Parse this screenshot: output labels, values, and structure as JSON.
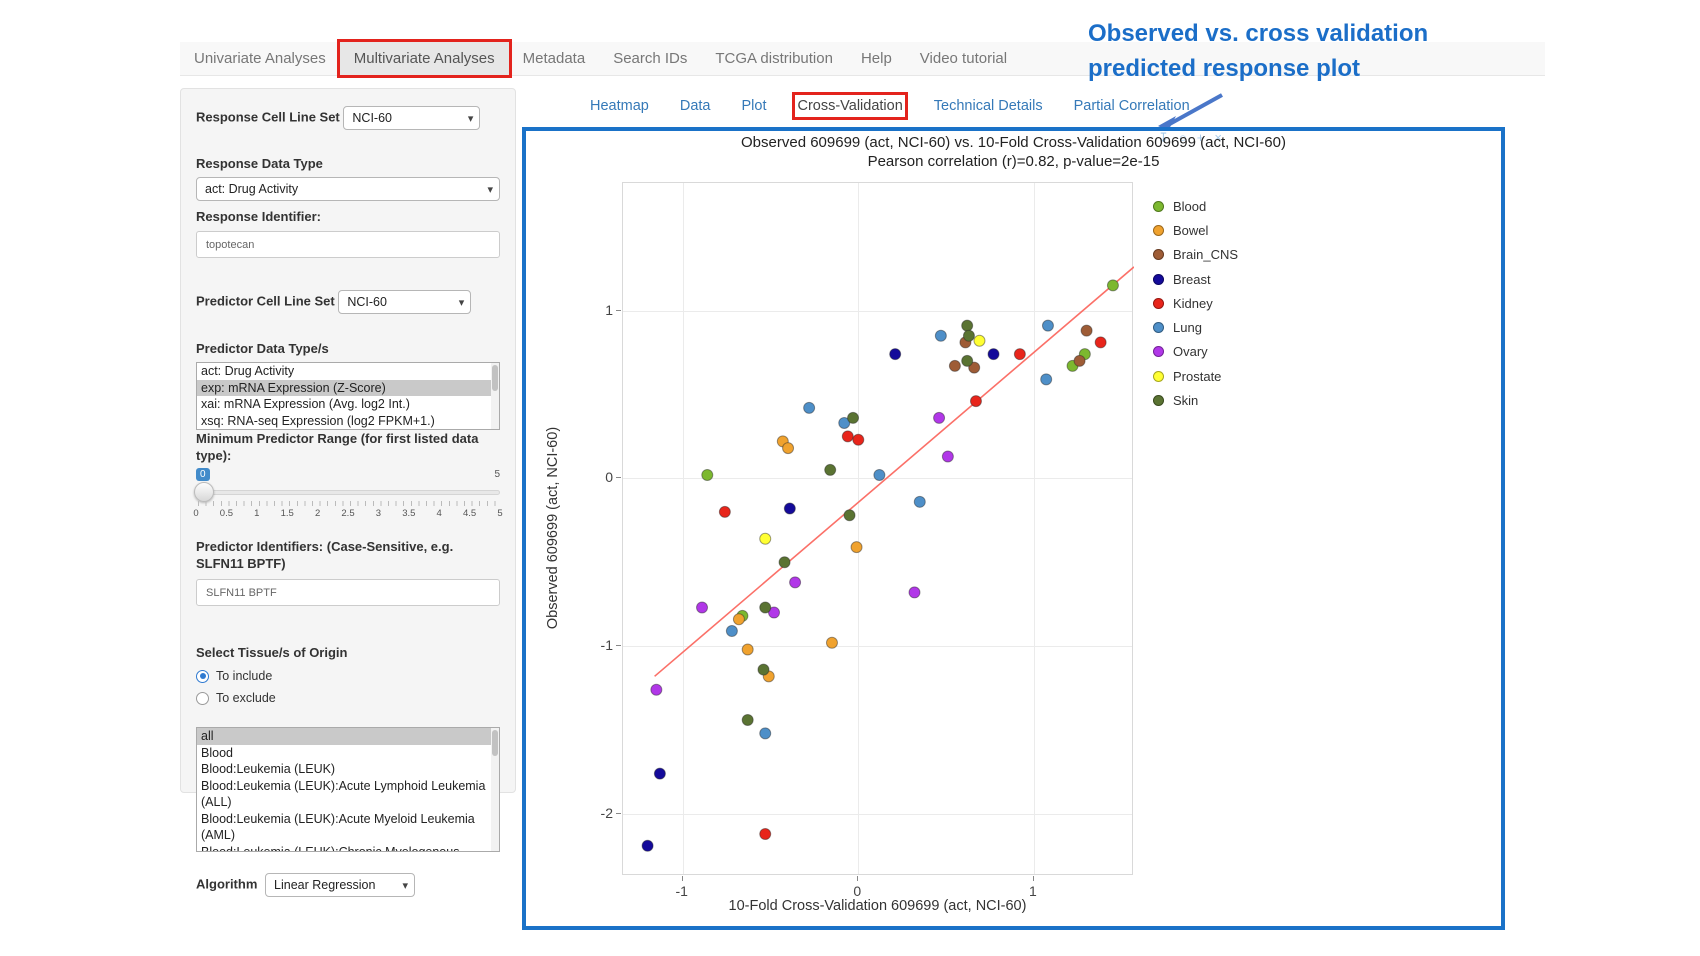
{
  "nav": {
    "items": [
      {
        "label": "Univariate Analyses",
        "active": false,
        "boxed": false
      },
      {
        "label": "Multivariate Analyses",
        "active": true,
        "boxed": true
      },
      {
        "label": "Metadata",
        "active": false,
        "boxed": false
      },
      {
        "label": "Search IDs",
        "active": false,
        "boxed": false
      },
      {
        "label": "TCGA distribution",
        "active": false,
        "boxed": false
      },
      {
        "label": "Help",
        "active": false,
        "boxed": false
      },
      {
        "label": "Video tutorial",
        "active": false,
        "boxed": false
      }
    ]
  },
  "annotation": {
    "line1": "Observed vs. cross validation",
    "line2": "predicted response plot"
  },
  "sidebar": {
    "response_cell_line_set": {
      "label": "Response Cell Line Set",
      "value": "NCI-60"
    },
    "response_data_type": {
      "label": "Response Data Type",
      "value": "act: Drug Activity"
    },
    "response_identifier": {
      "label": "Response Identifier:",
      "value": "topotecan"
    },
    "predictor_cell_line_set": {
      "label": "Predictor Cell Line Set",
      "value": "NCI-60"
    },
    "predictor_data_types": {
      "label": "Predictor Data Type/s",
      "options": [
        {
          "label": "act: Drug Activity",
          "selected": false
        },
        {
          "label": "exp: mRNA Expression (Z-Score)",
          "selected": true
        },
        {
          "label": "xai: mRNA Expression (Avg. log2 Int.)",
          "selected": false
        },
        {
          "label": "xsq: RNA-seq Expression (log2 FPKM+1.)",
          "selected": false
        }
      ]
    },
    "min_predictor_range": {
      "label": "Minimum Predictor Range (for first listed data type):",
      "value": "0",
      "max_label": "5",
      "grid": [
        "0",
        "0.5",
        "1",
        "1.5",
        "2",
        "2.5",
        "3",
        "3.5",
        "4",
        "4.5",
        "5"
      ]
    },
    "predictor_identifiers": {
      "label": "Predictor Identifiers: (Case-Sensitive, e.g. SLFN11 BPTF)",
      "value": "SLFN11 BPTF"
    },
    "tissue_origin": {
      "label": "Select Tissue/s of Origin",
      "radios": [
        {
          "label": "To include",
          "checked": true
        },
        {
          "label": "To exclude",
          "checked": false
        }
      ],
      "options": [
        {
          "label": "all",
          "selected": true
        },
        {
          "label": "Blood",
          "selected": false
        },
        {
          "label": "Blood:Leukemia (LEUK)",
          "selected": false
        },
        {
          "label": "Blood:Leukemia (LEUK):Acute Lymphoid Leukemia (ALL)",
          "selected": false
        },
        {
          "label": "Blood:Leukemia (LEUK):Acute Myeloid Leukemia (AML)",
          "selected": false
        },
        {
          "label": "Blood:Leukemia (LEUK):Chronic Myelogenous Leukemia (CML)",
          "selected": false
        }
      ]
    },
    "algorithm": {
      "label": "Algorithm",
      "value": "Linear Regression"
    }
  },
  "tabs": {
    "items": [
      {
        "label": "Heatmap",
        "active": false,
        "boxed": false
      },
      {
        "label": "Data",
        "active": false,
        "boxed": false
      },
      {
        "label": "Plot",
        "active": false,
        "boxed": false
      },
      {
        "label": "Cross-Validation",
        "active": true,
        "boxed": true
      },
      {
        "label": "Technical Details",
        "active": false,
        "boxed": false
      },
      {
        "label": "Partial Correlation",
        "active": false,
        "boxed": false
      }
    ]
  },
  "modebar": {
    "icons": [
      "download-icon",
      "zoom-icon",
      "pan-icon",
      "close-icon"
    ],
    "glyphs": [
      "↧",
      "○",
      "+",
      "×"
    ]
  },
  "colors": {
    "accent_blue": "#1b6ec8",
    "box_red": "#e3231d",
    "link_blue": "#3579b8",
    "trend_line": "#fb7068"
  },
  "chart_data": {
    "type": "scatter",
    "title": "Observed 609699 (act, NCI-60) vs. 10-Fold Cross-Validation 609699 (act, NCI-60)",
    "subtitle": "Pearson correlation (r)=0.82, p-value=2e-15",
    "xlabel": "10-Fold Cross-Validation 609699 (act, NCI-60)",
    "ylabel": "Observed 609699 (act, NCI-60)",
    "xlim": [
      -1.34,
      1.57
    ],
    "ylim": [
      -2.37,
      1.76
    ],
    "xticks": [
      -1,
      0,
      1
    ],
    "yticks": [
      1,
      0,
      -1,
      -2
    ],
    "grid": true,
    "legend_position": "right",
    "trend_line": {
      "x1": -1.16,
      "y1": -1.18,
      "x2": 1.57,
      "y2": 1.26
    },
    "groups": [
      {
        "name": "Blood",
        "color": "#7cb82f",
        "points": [
          [
            -0.86,
            0.02
          ],
          [
            -0.66,
            -0.82
          ],
          [
            1.22,
            0.67
          ],
          [
            1.29,
            0.74
          ],
          [
            1.45,
            1.15
          ]
        ]
      },
      {
        "name": "Bowel",
        "color": "#f0a22e",
        "points": [
          [
            -0.43,
            0.22
          ],
          [
            -0.4,
            0.18
          ],
          [
            -0.01,
            -0.41
          ],
          [
            -0.68,
            -0.84
          ],
          [
            -0.63,
            -1.02
          ],
          [
            -0.15,
            -0.98
          ],
          [
            -0.51,
            -1.18
          ]
        ]
      },
      {
        "name": "Brain_CNS",
        "color": "#9e5c36",
        "points": [
          [
            0.55,
            0.67
          ],
          [
            0.61,
            0.81
          ],
          [
            0.66,
            0.66
          ],
          [
            1.26,
            0.7
          ],
          [
            1.3,
            0.88
          ]
        ]
      },
      {
        "name": "Breast",
        "color": "#140a9a",
        "points": [
          [
            0.21,
            0.74
          ],
          [
            0.77,
            0.74
          ],
          [
            -0.39,
            -0.18
          ],
          [
            -1.13,
            -1.76
          ],
          [
            -1.2,
            -2.19
          ]
        ]
      },
      {
        "name": "Kidney",
        "color": "#e8251b",
        "points": [
          [
            0.92,
            0.74
          ],
          [
            1.38,
            0.81
          ],
          [
            0.67,
            0.46
          ],
          [
            -0.06,
            0.25
          ],
          [
            0.0,
            0.23
          ],
          [
            -0.76,
            -0.2
          ],
          [
            -0.53,
            -2.12
          ]
        ]
      },
      {
        "name": "Lung",
        "color": "#4e8fc8",
        "points": [
          [
            0.47,
            0.85
          ],
          [
            1.08,
            0.91
          ],
          [
            1.07,
            0.59
          ],
          [
            0.35,
            -0.14
          ],
          [
            0.12,
            0.02
          ],
          [
            -0.08,
            0.33
          ],
          [
            -0.28,
            0.42
          ],
          [
            -0.72,
            -0.91
          ],
          [
            -0.53,
            -1.52
          ]
        ]
      },
      {
        "name": "Ovary",
        "color": "#b137e8",
        "points": [
          [
            0.46,
            0.36
          ],
          [
            0.51,
            0.13
          ],
          [
            -0.36,
            -0.62
          ],
          [
            0.32,
            -0.68
          ],
          [
            -0.89,
            -0.77
          ],
          [
            -0.48,
            -0.8
          ],
          [
            -1.15,
            -1.26
          ]
        ]
      },
      {
        "name": "Prostate",
        "color": "#ffff33",
        "points": [
          [
            0.69,
            0.82
          ],
          [
            -0.53,
            -0.36
          ]
        ]
      },
      {
        "name": "Skin",
        "color": "#5a7332",
        "points": [
          [
            0.62,
            0.91
          ],
          [
            0.63,
            0.85
          ],
          [
            0.62,
            0.7
          ],
          [
            -0.03,
            0.36
          ],
          [
            -0.16,
            0.05
          ],
          [
            -0.05,
            -0.22
          ],
          [
            -0.42,
            -0.5
          ],
          [
            -0.53,
            -0.77
          ],
          [
            -0.54,
            -1.14
          ],
          [
            -0.63,
            -1.44
          ]
        ]
      }
    ]
  }
}
